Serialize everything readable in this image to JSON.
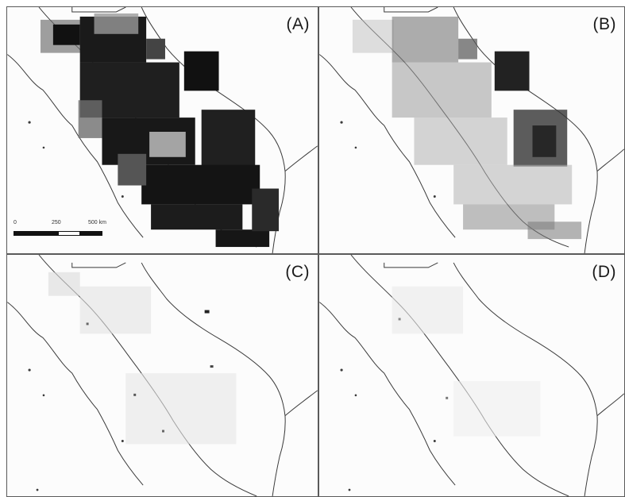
{
  "figure": {
    "panels": [
      {
        "id": "A",
        "label": "(A)"
      },
      {
        "id": "B",
        "label": "(B)"
      },
      {
        "id": "C",
        "label": "(C)"
      },
      {
        "id": "D",
        "label": "(D)"
      }
    ],
    "scale_bar": {
      "ticks": [
        "0",
        "250",
        "500 km"
      ]
    },
    "colors": {
      "land_outline": "#3a3a3a",
      "heavy_density": "#111111",
      "medium_density": "#777777",
      "light_density": "#bdbdbd",
      "background": "#ffffff"
    }
  }
}
